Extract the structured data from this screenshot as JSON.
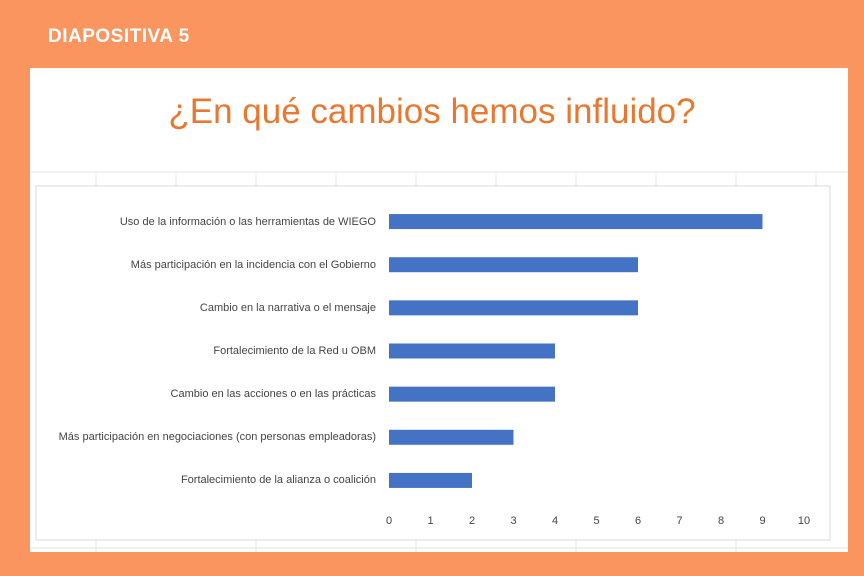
{
  "slide": {
    "label": "DIAPOSITIVA 5"
  },
  "chart_data": {
    "type": "barh",
    "title": "¿En qué cambios hemos influido?",
    "categories": [
      "Uso de la información o las herramientas de WIEGO",
      "Más participación en la incidencia con el Gobierno",
      "Cambio en la narrativa o el mensaje",
      "Fortalecimiento de la Red u OBM",
      "Cambio en las acciones o en las prácticas",
      "Más participación en negociaciones (con personas empleadoras)",
      "Fortalecimiento de la alianza o coalición"
    ],
    "values": [
      9,
      6,
      6,
      4,
      4,
      3,
      2
    ],
    "color": "#4472c4",
    "xlim": [
      0,
      10
    ],
    "xticks": [
      0,
      1,
      2,
      3,
      4,
      5,
      6,
      7,
      8,
      9,
      10
    ],
    "grid": false
  }
}
